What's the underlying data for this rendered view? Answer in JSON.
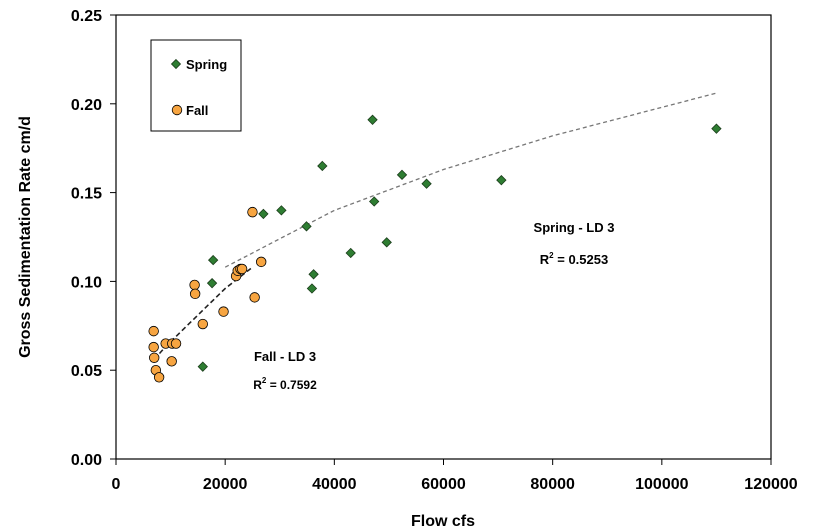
{
  "chart_data": {
    "type": "scatter",
    "xlabel": "Flow cfs",
    "ylabel": "Gross Sedimentation Rate cm/d",
    "xlim": [
      0,
      120000
    ],
    "ylim": [
      0,
      0.25
    ],
    "x_ticks": [
      "0",
      "20000",
      "40000",
      "60000",
      "80000",
      "100000",
      "120000"
    ],
    "y_ticks": [
      "0.00",
      "0.05",
      "0.10",
      "0.15",
      "0.20",
      "0.25"
    ],
    "grid": false,
    "legend": {
      "placement": "top-left",
      "entries": [
        "Spring",
        "Fall"
      ]
    },
    "series": [
      {
        "name": "Spring",
        "marker": "diamond",
        "color": "#2e7d32",
        "points": [
          [
            15900,
            0.052
          ],
          [
            17600,
            0.099
          ],
          [
            17800,
            0.112
          ],
          [
            27000,
            0.138
          ],
          [
            30300,
            0.14
          ],
          [
            34900,
            0.131
          ],
          [
            35900,
            0.096
          ],
          [
            36200,
            0.104
          ],
          [
            37800,
            0.165
          ],
          [
            43000,
            0.116
          ],
          [
            47000,
            0.191
          ],
          [
            47300,
            0.145
          ],
          [
            49600,
            0.122
          ],
          [
            52400,
            0.16
          ],
          [
            56900,
            0.155
          ],
          [
            70600,
            0.157
          ],
          [
            110000,
            0.186
          ]
        ]
      },
      {
        "name": "Fall",
        "marker": "circle",
        "color": "#f7a541",
        "points": [
          [
            6900,
            0.072
          ],
          [
            6900,
            0.063
          ],
          [
            7000,
            0.057
          ],
          [
            7300,
            0.05
          ],
          [
            7900,
            0.046
          ],
          [
            9100,
            0.065
          ],
          [
            10200,
            0.055
          ],
          [
            10300,
            0.065
          ],
          [
            11000,
            0.065
          ],
          [
            14400,
            0.098
          ],
          [
            14500,
            0.093
          ],
          [
            15900,
            0.076
          ],
          [
            19700,
            0.083
          ],
          [
            22000,
            0.103
          ],
          [
            22300,
            0.106
          ],
          [
            22800,
            0.107
          ],
          [
            23100,
            0.107
          ],
          [
            25000,
            0.139
          ],
          [
            25400,
            0.091
          ],
          [
            26600,
            0.111
          ]
        ]
      }
    ],
    "trendlines": [
      {
        "series": "Spring",
        "label": "Spring - LD 3",
        "r2_prefix": "R",
        "r2_sup": "2",
        "r2_value": " = 0.5253",
        "points": [
          [
            20000,
            0.108
          ],
          [
            40000,
            0.14
          ],
          [
            60000,
            0.163
          ],
          [
            80000,
            0.182
          ],
          [
            110000,
            0.206
          ]
        ]
      },
      {
        "series": "Fall",
        "label": "Fall - LD 3",
        "r2_prefix": "R",
        "r2_sup": "2",
        "r2_value": " = 0.7592",
        "points": [
          [
            7000,
            0.056
          ],
          [
            9000,
            0.063
          ],
          [
            12000,
            0.072
          ],
          [
            16000,
            0.084
          ],
          [
            20000,
            0.096
          ],
          [
            25000,
            0.108
          ]
        ]
      }
    ]
  }
}
